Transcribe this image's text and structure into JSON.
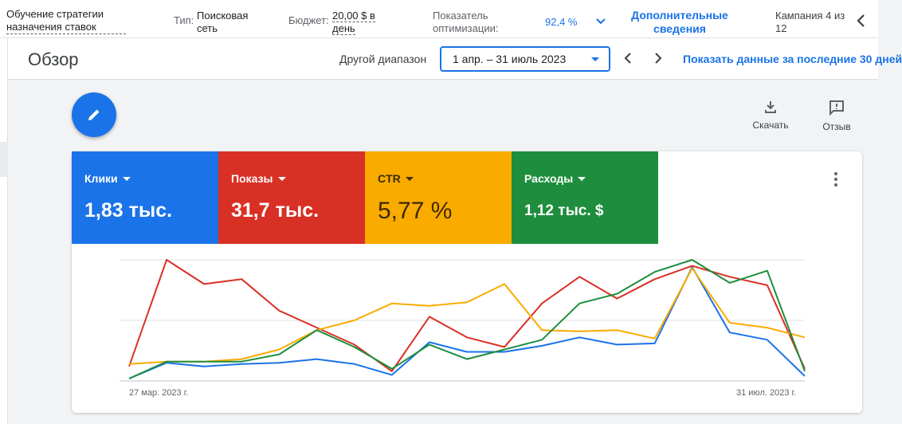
{
  "topbar": {
    "strategy_line1": "Обучение стратегии",
    "strategy_line2": "назначения ставок",
    "type_label": "Тип:",
    "type_value": "Поисковая сеть",
    "budget_label": "Бюджет:",
    "budget_value": "20,00 $ в день",
    "optimization_label": "Показатель оптимизации:",
    "optimization_value": "92,4 %",
    "more_details": "Дополнительные сведения",
    "campaign_counter": "Кампания 4 из 12"
  },
  "header": {
    "title": "Обзор",
    "range_label": "Другой диапазон",
    "range_value": "1 апр. – 31 июль 2023",
    "last30_link": "Показать данные за последние 30 дней"
  },
  "tools": {
    "download": "Скачать",
    "feedback": "Отзыв"
  },
  "metrics": [
    {
      "label": "Клики",
      "value": "1,83 тыс.",
      "color": "#1a73e8"
    },
    {
      "label": "Показы",
      "value": "31,7 тыс.",
      "color": "#d93025"
    },
    {
      "label": "CTR",
      "value": "5,77 %",
      "color": "#f9ab00"
    },
    {
      "label": "Расходы",
      "value": "1,12 тыс. $",
      "color": "#1e8e3e"
    }
  ],
  "chart_data": {
    "type": "line",
    "x_start_label": "27 мар. 2023 г.",
    "x_end_label": "31 июл. 2023 г.",
    "grid": true,
    "ylim": [
      0,
      100
    ],
    "series": [
      {
        "color": "#1a73e8",
        "values": [
          2,
          15,
          12,
          14,
          15,
          18,
          14,
          5,
          32,
          24,
          24,
          29,
          36,
          30,
          31,
          94,
          40,
          34,
          4
        ]
      },
      {
        "color": "#d93025",
        "values": [
          12,
          100,
          80,
          84,
          58,
          44,
          30,
          8,
          53,
          36,
          28,
          64,
          86,
          68,
          84,
          95,
          86,
          79,
          10
        ]
      },
      {
        "color": "#f9ab00",
        "values": [
          14,
          16,
          16,
          18,
          26,
          42,
          50,
          64,
          62,
          65,
          80,
          42,
          41,
          42,
          35,
          93,
          48,
          44,
          36
        ]
      },
      {
        "color": "#1e8e3e",
        "values": [
          2,
          16,
          16,
          16,
          22,
          42,
          28,
          10,
          30,
          18,
          26,
          34,
          64,
          72,
          90,
          100,
          81,
          91,
          8
        ]
      }
    ]
  }
}
